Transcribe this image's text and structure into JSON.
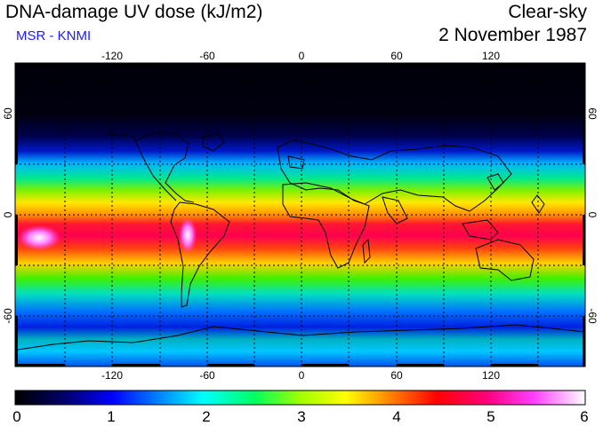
{
  "header": {
    "title": "DNA-damage UV dose (kJ/m2)",
    "subtitle": "MSR - KNMI",
    "sky": "Clear-sky",
    "date": "2 November 1987"
  },
  "colors": {
    "subtitle": "#1a1aff",
    "coastline": "#000000"
  },
  "map": {
    "lon_ticks": [
      "-120",
      "-60",
      "0",
      "60",
      "120"
    ],
    "lat_ticks": [
      "60",
      "0",
      "-60"
    ],
    "grid": "dotted, 30 degree spacing"
  },
  "colorbar": {
    "ticks": [
      "0",
      "1",
      "2",
      "3",
      "4",
      "5",
      "6"
    ],
    "min": 0,
    "max": 6
  }
}
